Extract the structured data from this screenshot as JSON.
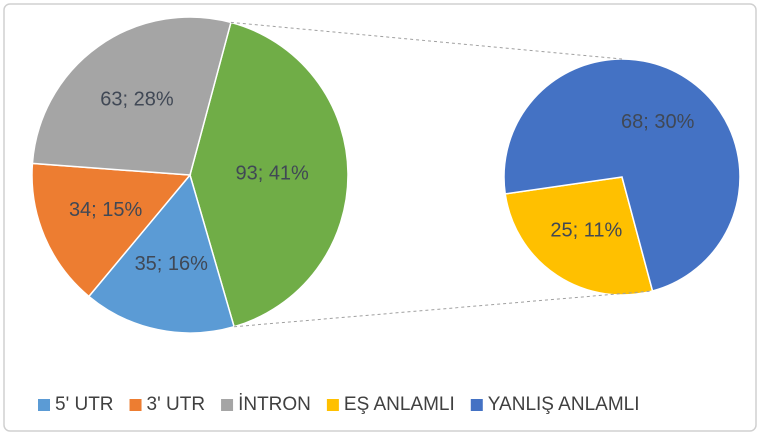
{
  "chart_data": {
    "type": "pie_of_pie",
    "categories": [
      "5' UTR",
      "3' UTR",
      "İNTRON",
      "EŞ ANLAMLI",
      "YANLIŞ ANLAMLI"
    ],
    "values": [
      35,
      34,
      63,
      25,
      68
    ],
    "value_labels": [
      "35; 16%",
      "34; 15%",
      "63; 28%",
      "25; 11%",
      "68; 30%"
    ],
    "colors": [
      "#5b9bd5",
      "#ed7d31",
      "#a5a5a5",
      "#ffc000",
      "#4472c4"
    ],
    "other_value": 93,
    "other_label": "93; 41%",
    "other_color": "#70ad47",
    "secondary_categories": [
      3,
      4
    ]
  }
}
